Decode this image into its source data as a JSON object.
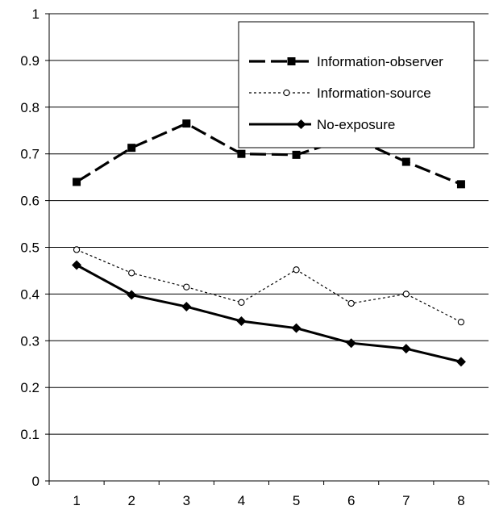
{
  "chart_data": {
    "type": "line",
    "categories": [
      "1",
      "2",
      "3",
      "4",
      "5",
      "6",
      "7",
      "8"
    ],
    "ylim": [
      0,
      1
    ],
    "y_ticks": [
      "0",
      "0.1",
      "0.2",
      "0.3",
      "0.4",
      "0.5",
      "0.6",
      "0.7",
      "0.8",
      "0.9",
      "1"
    ],
    "grid": "horizontal",
    "legend_position": "top-right",
    "series": [
      {
        "name": "Information-observer",
        "style": "dashed",
        "marker": "square",
        "values": [
          0.64,
          0.713,
          0.765,
          0.7,
          0.698,
          0.736,
          0.683,
          0.635
        ]
      },
      {
        "name": "Information-source",
        "style": "dotted",
        "marker": "circle",
        "values": [
          0.495,
          0.445,
          0.415,
          0.382,
          0.452,
          0.38,
          0.4,
          0.34
        ]
      },
      {
        "name": "No-exposure",
        "style": "solid",
        "marker": "diamond",
        "values": [
          0.462,
          0.398,
          0.373,
          0.342,
          0.327,
          0.295,
          0.283,
          0.255
        ]
      }
    ],
    "colors": {
      "line": "#000000",
      "grid": "#000000",
      "background": "#ffffff"
    }
  }
}
